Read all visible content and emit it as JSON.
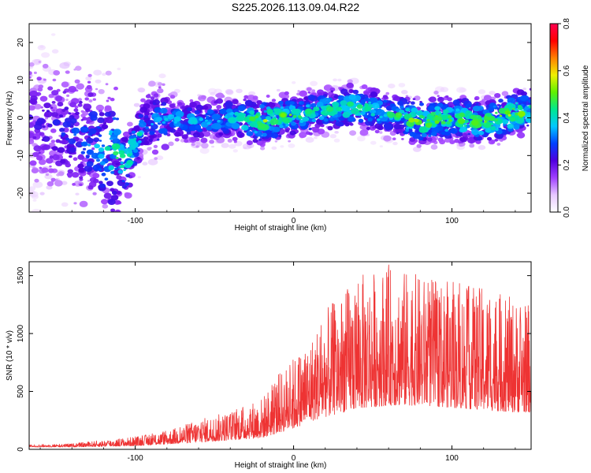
{
  "title": "S225.2026.113.09.04.R22",
  "chart_data": [
    {
      "type": "heatmap",
      "name": "spectrogram",
      "xlabel": "Height of straight line (km)",
      "ylabel": "Frequency (Hz)",
      "xlim": [
        -167,
        150
      ],
      "ylim": [
        -25,
        25
      ],
      "xticks": [
        {
          "value": -100,
          "label": "-100"
        },
        {
          "value": 0,
          "label": "0"
        },
        {
          "value": 100,
          "label": "100"
        }
      ],
      "yticks": [
        {
          "value": -20,
          "label": "-20"
        },
        {
          "value": -10,
          "label": "-10"
        },
        {
          "value": 0,
          "label": "0"
        },
        {
          "value": 10,
          "label": "10"
        },
        {
          "value": 20,
          "label": "20"
        }
      ],
      "ridge": {
        "x": [
          -167,
          -150,
          -130,
          -115,
          -105,
          -95,
          -80,
          -60,
          -40,
          -20,
          0,
          20,
          40,
          60,
          80,
          100,
          120,
          140,
          150
        ],
        "freq": [
          0,
          -3,
          -6,
          -9,
          -12,
          -2,
          0,
          -1,
          0,
          -1,
          1,
          2,
          3,
          1,
          -1,
          0,
          -1,
          1,
          2
        ],
        "peak_amplitude": [
          0.18,
          0.2,
          0.25,
          0.35,
          0.4,
          0.3,
          0.3,
          0.3,
          0.32,
          0.45,
          0.4,
          0.35,
          0.4,
          0.35,
          0.45,
          0.4,
          0.42,
          0.45,
          0.4
        ]
      },
      "colorbar": {
        "label": "Normalized spectral amplitude",
        "range": [
          0.0,
          0.8
        ],
        "ticks": [
          {
            "value": 0.0,
            "label": "0.0"
          },
          {
            "value": 0.2,
            "label": "0.2"
          },
          {
            "value": 0.4,
            "label": "0.4"
          },
          {
            "value": 0.6,
            "label": "0.6"
          },
          {
            "value": 0.8,
            "label": "0.8"
          }
        ],
        "colors": [
          "#ffffff",
          "#e8c8ff",
          "#a040ff",
          "#5000e0",
          "#0040ff",
          "#00c8ff",
          "#00e890",
          "#60f000",
          "#f0f000",
          "#ff8000",
          "#ff0000",
          "#ff0050"
        ]
      }
    },
    {
      "type": "line",
      "name": "snr",
      "xlabel": "Height of straight line (km)",
      "ylabel": "SNR (10 * v/v)",
      "xlim": [
        -167,
        150
      ],
      "ylim": [
        0,
        1620
      ],
      "xticks": [
        {
          "value": -100,
          "label": "-100"
        },
        {
          "value": 0,
          "label": "0"
        },
        {
          "value": 100,
          "label": "100"
        }
      ],
      "yticks": [
        {
          "value": 0,
          "label": "0"
        },
        {
          "value": 500,
          "label": "500"
        },
        {
          "value": 1000,
          "label": "1000"
        },
        {
          "value": 1500,
          "label": "1500"
        }
      ],
      "color": "#ee3333",
      "envelope": {
        "x": [
          -167,
          -140,
          -120,
          -100,
          -80,
          -60,
          -40,
          -20,
          -10,
          0,
          10,
          20,
          40,
          60,
          80,
          100,
          120,
          140,
          150
        ],
        "base": [
          20,
          20,
          25,
          30,
          45,
          60,
          80,
          100,
          140,
          180,
          240,
          280,
          350,
          380,
          380,
          360,
          340,
          320,
          320
        ],
        "peak": [
          40,
          50,
          80,
          110,
          160,
          260,
          330,
          450,
          640,
          800,
          950,
          1200,
          1500,
          1600,
          1500,
          1450,
          1400,
          1300,
          1250
        ]
      }
    }
  ]
}
